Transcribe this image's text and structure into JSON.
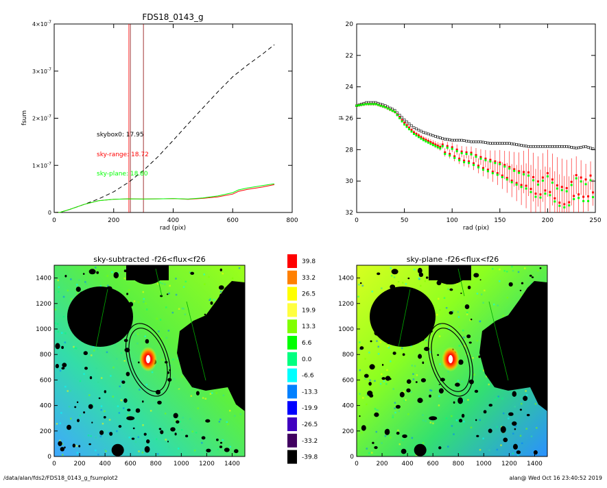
{
  "colors": {
    "axis": "#000000",
    "sky_range": "#ff0000",
    "sky_plane": "#00ff00",
    "skybox": "#000000",
    "dark_red_line": "#8b0000"
  },
  "chart_data": [
    {
      "id": "fsum",
      "type": "line",
      "title": "FDS18_0143_g",
      "xlabel": "rad (pix)",
      "ylabel": "fsum",
      "xlim": [
        0,
        800
      ],
      "ylim": [
        0,
        4e-07
      ],
      "xticks": [
        "0",
        "200",
        "400",
        "600",
        "800"
      ],
      "yticks": [
        {
          "value": 0,
          "mantissa": "0",
          "exp": ""
        },
        {
          "value": 1e-07,
          "mantissa": "1×10",
          "exp": "-7"
        },
        {
          "value": 2e-07,
          "mantissa": "2×10",
          "exp": "-7"
        },
        {
          "value": 3e-07,
          "mantissa": "3×10",
          "exp": "-7"
        },
        {
          "value": 4e-07,
          "mantissa": "4×10",
          "exp": "-7"
        }
      ],
      "vlines": [
        {
          "x": 251,
          "color": "#ff0000"
        },
        {
          "x": 256,
          "color": "#8b0000"
        },
        {
          "x": 300,
          "color": "#8b0000"
        }
      ],
      "annotations": [
        {
          "label": "skybox0:",
          "value": "17.95",
          "color": "#000000"
        },
        {
          "label": "sky-range:",
          "value": "18.72",
          "color": "#ff0000"
        },
        {
          "label": "sky-plane:",
          "value": "18.80",
          "color": "#00ff00"
        }
      ],
      "series": [
        {
          "style": "dashed",
          "color": "#000000",
          "x": [
            0,
            20,
            50,
            100,
            150,
            200,
            250,
            300,
            350,
            400,
            450,
            500,
            550,
            600,
            650,
            700,
            740
          ],
          "y": [
            0,
            5e-10,
            6e-09,
            1.7e-08,
            2.9e-08,
            4.4e-08,
            6.4e-08,
            8.9e-08,
            1.19e-07,
            1.53e-07,
            1.88e-07,
            2.22e-07,
            2.56e-07,
            2.88e-07,
            3.13e-07,
            3.36e-07,
            3.56e-07
          ]
        },
        {
          "style": "solid",
          "color": "#ff0000",
          "x": [
            0,
            20,
            50,
            100,
            150,
            200,
            250,
            300,
            350,
            400,
            450,
            500,
            550,
            600,
            620,
            650,
            700,
            740
          ],
          "y": [
            0,
            5e-10,
            6e-09,
            1.7e-08,
            2.5e-08,
            2.8e-08,
            2.9e-08,
            2.85e-08,
            2.9e-08,
            2.95e-08,
            2.8e-08,
            3e-08,
            3.3e-08,
            3.9e-08,
            4.5e-08,
            4.9e-08,
            5.4e-08,
            5.9e-08
          ]
        },
        {
          "style": "solid",
          "color": "#00ff00",
          "x": [
            0,
            20,
            50,
            100,
            150,
            200,
            250,
            300,
            350,
            400,
            450,
            500,
            550,
            600,
            620,
            650,
            700,
            740
          ],
          "y": [
            0,
            5e-10,
            6e-09,
            1.7e-08,
            2.5e-08,
            2.8e-08,
            2.9e-08,
            2.85e-08,
            2.9e-08,
            2.95e-08,
            2.85e-08,
            3.1e-08,
            3.5e-08,
            4.2e-08,
            4.8e-08,
            5.2e-08,
            5.7e-08,
            6.1e-08
          ]
        }
      ]
    },
    {
      "id": "mu",
      "type": "scatter",
      "xlabel": "rad (pix)",
      "ylabel": "μ",
      "xlim": [
        0,
        250
      ],
      "ylim": [
        32,
        20
      ],
      "xticks": [
        "0",
        "50",
        "100",
        "150",
        "200",
        "250"
      ],
      "yticks": [
        "20",
        "22",
        "24",
        "26",
        "28",
        "30",
        "32"
      ],
      "series": [
        {
          "color": "#000000",
          "marker": "open-square",
          "x": [
            0,
            10,
            20,
            30,
            40,
            50,
            60,
            70,
            80,
            90,
            100,
            110,
            120,
            130,
            140,
            150,
            160,
            170,
            180,
            190,
            200,
            210,
            220,
            230,
            240,
            250
          ],
          "y": [
            25.2,
            25.0,
            25.0,
            25.2,
            25.5,
            26.1,
            26.6,
            26.9,
            27.1,
            27.3,
            27.4,
            27.4,
            27.5,
            27.5,
            27.6,
            27.6,
            27.6,
            27.7,
            27.8,
            27.8,
            27.8,
            27.8,
            27.8,
            27.9,
            27.8,
            28.0
          ]
        },
        {
          "color": "#ff0000",
          "marker": "filled-square",
          "errorbars": true,
          "x": [
            0,
            10,
            20,
            30,
            40,
            50,
            60,
            70,
            80,
            90,
            100,
            110,
            120,
            130,
            140,
            150,
            160,
            170,
            180,
            190,
            200,
            210,
            220,
            230,
            240,
            250
          ],
          "y": [
            25.2,
            25.1,
            25.1,
            25.3,
            25.6,
            26.3,
            26.9,
            27.3,
            27.6,
            27.9,
            28.1,
            28.4,
            28.5,
            28.8,
            29.0,
            29.2,
            29.5,
            29.8,
            29.9,
            30.5,
            30.0,
            30.8,
            31.0,
            30.2,
            30.5,
            30.0
          ],
          "err": [
            0.1,
            0.1,
            0.1,
            0.1,
            0.1,
            0.1,
            0.15,
            0.15,
            0.2,
            0.25,
            0.3,
            0.35,
            0.4,
            0.5,
            0.6,
            0.8,
            1.0,
            1.2,
            1.5,
            1.6,
            1.5,
            1.8,
            1.8,
            1.2,
            1.0,
            0.8
          ]
        },
        {
          "color": "#00ff00",
          "marker": "filled-square",
          "x": [
            0,
            10,
            20,
            30,
            40,
            50,
            60,
            70,
            80,
            90,
            100,
            110,
            120,
            130,
            140,
            150,
            160,
            170,
            180,
            190,
            200,
            210,
            220,
            230,
            240,
            250
          ],
          "y": [
            25.2,
            25.1,
            25.1,
            25.3,
            25.6,
            26.4,
            27.0,
            27.4,
            27.7,
            28.0,
            28.2,
            28.5,
            28.6,
            28.9,
            29.1,
            29.3,
            29.6,
            29.9,
            30.1,
            30.7,
            30.2,
            31.0,
            31.2,
            30.4,
            30.8,
            30.3
          ]
        }
      ]
    },
    {
      "id": "map_sub",
      "type": "heatmap",
      "title": "sky-subtracted -f26<flux<f26",
      "xlim": [
        0,
        1500
      ],
      "ylim": [
        0,
        1500
      ],
      "xticks": [
        "0",
        "200",
        "400",
        "600",
        "800",
        "1000",
        "1200",
        "1400"
      ],
      "yticks": [
        "0",
        "200",
        "400",
        "600",
        "800",
        "1000",
        "1200",
        "1400"
      ]
    },
    {
      "id": "map_plane",
      "type": "heatmap",
      "title": "sky-plane -f26<flux<f26",
      "xlim": [
        0,
        1500
      ],
      "ylim": [
        0,
        1500
      ],
      "xticks": [
        "0",
        "200",
        "400",
        "600",
        "800",
        "1000",
        "1200",
        "1400"
      ],
      "yticks": [
        "0",
        "200",
        "400",
        "600",
        "800",
        "1000",
        "1200",
        "1400"
      ]
    }
  ],
  "colorbar": [
    {
      "value": "39.8",
      "color": "#ff0000"
    },
    {
      "value": "33.2",
      "color": "#ff8000"
    },
    {
      "value": "26.5",
      "color": "#ffff00"
    },
    {
      "value": "19.9",
      "color": "#ffff40"
    },
    {
      "value": "13.3",
      "color": "#80ff00"
    },
    {
      "value": "6.6",
      "color": "#00ff00"
    },
    {
      "value": "0.0",
      "color": "#00ff80"
    },
    {
      "value": "-6.6",
      "color": "#00ffff"
    },
    {
      "value": "-13.3",
      "color": "#0080ff"
    },
    {
      "value": "-19.9",
      "color": "#0000ff"
    },
    {
      "value": "-26.5",
      "color": "#4000c0"
    },
    {
      "value": "-33.2",
      "color": "#400060"
    },
    {
      "value": "-39.8",
      "color": "#000000"
    }
  ],
  "footer": {
    "path": "/data/alan/fds2/FDS18_0143_g_fsumplot2",
    "timestamp": "alan@  Wed Oct 16 23:40:52 2019"
  }
}
